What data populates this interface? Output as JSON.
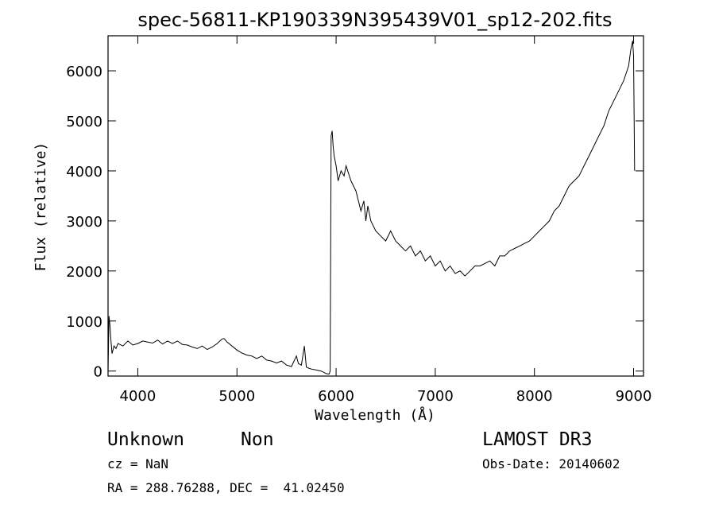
{
  "chart_data": {
    "type": "line",
    "title": "spec-56811-KP190339N395439V01_sp12-202.fits",
    "xlabel": "Wavelength (Å)",
    "ylabel": "Flux (relative)",
    "xlim": [
      3700,
      9100
    ],
    "ylim": [
      -100,
      6700
    ],
    "x_ticks": [
      4000,
      5000,
      6000,
      7000,
      8000,
      9000
    ],
    "y_ticks": [
      0,
      1000,
      2000,
      3000,
      4000,
      5000,
      6000
    ],
    "grid": false,
    "series": [
      {
        "x": [
          3700,
          3710,
          3720,
          3730,
          3740,
          3760,
          3780,
          3800,
          3850,
          3900,
          3950,
          4000,
          4050,
          4100,
          4150,
          4200,
          4250,
          4300,
          4350,
          4400,
          4450,
          4500,
          4550,
          4600,
          4650,
          4700,
          4750,
          4800,
          4850,
          4870,
          4900,
          4950,
          5000,
          5050,
          5100,
          5150,
          5200,
          5250,
          5300,
          5350,
          5400,
          5450,
          5500,
          5550,
          5600,
          5620,
          5650,
          5680,
          5700,
          5720,
          5750,
          5800,
          5850,
          5900,
          5930,
          5940,
          5950,
          5960,
          5970,
          5980,
          6000,
          6020,
          6050,
          6080,
          6100,
          6150,
          6200,
          6250,
          6280,
          6300,
          6320,
          6350,
          6400,
          6450,
          6500,
          6550,
          6600,
          6650,
          6700,
          6750,
          6800,
          6850,
          6900,
          6950,
          7000,
          7050,
          7100,
          7150,
          7200,
          7250,
          7300,
          7350,
          7400,
          7450,
          7500,
          7550,
          7600,
          7650,
          7700,
          7750,
          7800,
          7850,
          7900,
          7950,
          8000,
          8050,
          8100,
          8150,
          8200,
          8250,
          8300,
          8350,
          8400,
          8450,
          8500,
          8550,
          8600,
          8650,
          8700,
          8750,
          8800,
          8850,
          8900,
          8950,
          8970,
          8990,
          9000,
          9010
        ],
        "y": [
          0,
          1100,
          900,
          600,
          350,
          500,
          450,
          550,
          500,
          600,
          520,
          550,
          600,
          580,
          560,
          620,
          540,
          600,
          550,
          600,
          530,
          520,
          480,
          450,
          500,
          430,
          480,
          550,
          640,
          650,
          580,
          500,
          420,
          360,
          320,
          300,
          250,
          300,
          220,
          200,
          160,
          200,
          120,
          90,
          300,
          150,
          120,
          500,
          80,
          60,
          40,
          20,
          0,
          -50,
          -60,
          0,
          4700,
          4800,
          4500,
          4300,
          4100,
          3800,
          4000,
          3900,
          4100,
          3800,
          3600,
          3200,
          3400,
          3000,
          3300,
          3000,
          2800,
          2700,
          2600,
          2800,
          2600,
          2500,
          2400,
          2500,
          2300,
          2400,
          2200,
          2300,
          2100,
          2200,
          2000,
          2100,
          1950,
          2000,
          1900,
          2000,
          2100,
          2100,
          2150,
          2200,
          2100,
          2300,
          2300,
          2400,
          2450,
          2500,
          2550,
          2600,
          2700,
          2800,
          2900,
          3000,
          3200,
          3300,
          3500,
          3700,
          3800,
          3900,
          4100,
          4300,
          4500,
          4700,
          4900,
          5200,
          5400,
          5600,
          5800,
          6100,
          6400,
          6600,
          6300,
          4000
        ]
      }
    ],
    "annotations": {
      "object_class": "Unknown",
      "object_subclass": "Non",
      "survey": "LAMOST DR3",
      "cz": "cz = NaN",
      "obs_date": "Obs-Date: 20140602",
      "coords": "RA = 288.76288, DEC =  41.02450"
    }
  }
}
